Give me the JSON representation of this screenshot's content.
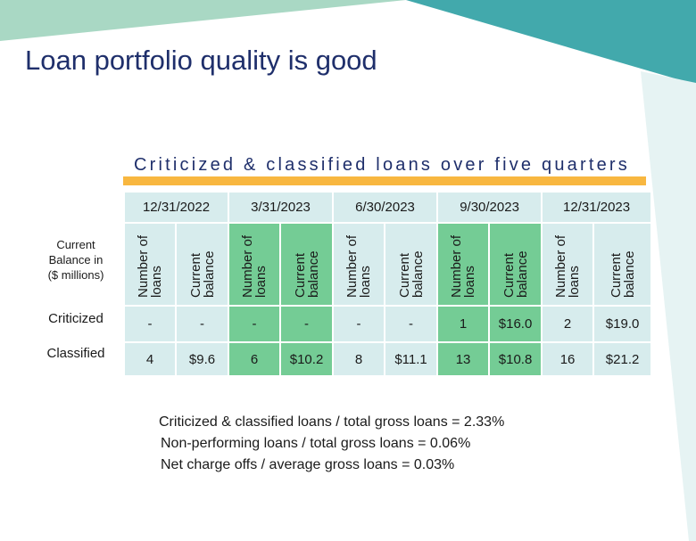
{
  "page": {
    "title": "Loan portfolio quality is good"
  },
  "colors": {
    "title": "#1f2f6b",
    "teal": "#42a9ac",
    "light_teal": "#d7eced",
    "highlight_green": "#74cc95",
    "orange": "#f8b740"
  },
  "table": {
    "subtitle": "Criticized & classified loans over five quarters",
    "balance_note_line1": "Current",
    "balance_note_line2": "Balance in",
    "balance_note_line3": "($ millions)",
    "sub_headers": {
      "count": "Number of loans",
      "balance": "Current balance"
    },
    "quarters": [
      {
        "date": "12/31/2022",
        "criticized_count": "-",
        "criticized_balance": "-",
        "classified_count": "4",
        "classified_balance": "$9.6"
      },
      {
        "date": "3/31/2023",
        "criticized_count": "-",
        "criticized_balance": "-",
        "classified_count": "6",
        "classified_balance": "$10.2"
      },
      {
        "date": "6/30/2023",
        "criticized_count": "-",
        "criticized_balance": "-",
        "classified_count": "8",
        "classified_balance": "$11.1"
      },
      {
        "date": "9/30/2023",
        "criticized_count": "1",
        "criticized_balance": "$16.0",
        "classified_count": "13",
        "classified_balance": "$10.8"
      },
      {
        "date": "12/31/2023",
        "criticized_count": "2",
        "criticized_balance": "$19.0",
        "classified_count": "16",
        "classified_balance": "$21.2"
      }
    ],
    "row_labels": {
      "criticized": "Criticized",
      "classified": "Classified"
    }
  },
  "ratios": [
    "Criticized & classified loans / total gross loans = 2.33%",
    "Non-performing loans / total gross loans = 0.06%",
    "Net charge offs / average gross loans = 0.03%"
  ]
}
